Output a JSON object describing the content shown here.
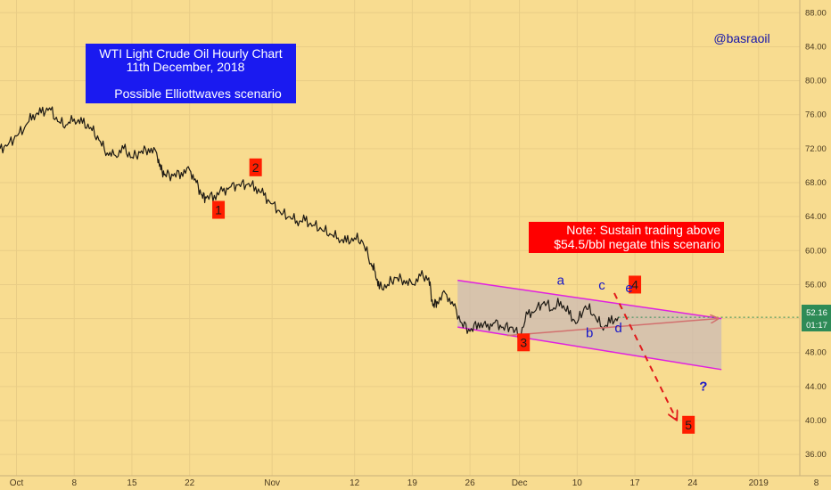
{
  "chart_data": {
    "type": "line",
    "title_lines": [
      "WTI Light Crude Oil Hourly Chart",
      "11th December, 2018",
      "Possible Elliottwaves scenario"
    ],
    "watermark": "@basraoil",
    "note_lines": [
      "Note: Sustain trading above",
      "$54.5/bbl negate this scenario"
    ],
    "ylim": [
      33.5,
      89.5
    ],
    "xlim": [
      0,
      97
    ],
    "y_ticks": [
      "88.00",
      "84.00",
      "80.00",
      "76.00",
      "72.00",
      "68.00",
      "64.00",
      "60.00",
      "56.00",
      "52.00",
      "48.00",
      "44.00",
      "40.00",
      "36.00"
    ],
    "x_ticks": [
      {
        "label": "Oct",
        "x": 2
      },
      {
        "label": "8",
        "x": 9
      },
      {
        "label": "15",
        "x": 16
      },
      {
        "label": "22",
        "x": 23
      },
      {
        "label": "Nov",
        "x": 33
      },
      {
        "label": "12",
        "x": 43
      },
      {
        "label": "19",
        "x": 50
      },
      {
        "label": "26",
        "x": 57
      },
      {
        "label": "Dec",
        "x": 63
      },
      {
        "label": "10",
        "x": 70
      },
      {
        "label": "17",
        "x": 77
      },
      {
        "label": "24",
        "x": 84
      },
      {
        "label": "2019",
        "x": 92
      },
      {
        "label": "8",
        "x": 99
      }
    ],
    "series": [
      {
        "points": [
          [
            0,
            72.0
          ],
          [
            1,
            72.5
          ],
          [
            2,
            73.5
          ],
          [
            3,
            74.5
          ],
          [
            4,
            76.0
          ],
          [
            5,
            76.2
          ],
          [
            6,
            76.8
          ],
          [
            7,
            75.2
          ],
          [
            8,
            74.8
          ],
          [
            9,
            75.5
          ],
          [
            10,
            75.0
          ],
          [
            11,
            74.5
          ],
          [
            12,
            73.0
          ],
          [
            13,
            71.5
          ],
          [
            14,
            71.2
          ],
          [
            15,
            72.0
          ],
          [
            16,
            71.0
          ],
          [
            17,
            71.5
          ],
          [
            18,
            72.0
          ],
          [
            19,
            71.5
          ],
          [
            19.5,
            69.5
          ],
          [
            20,
            69.0
          ],
          [
            21,
            68.8
          ],
          [
            22,
            69.2
          ],
          [
            23,
            69.5
          ],
          [
            23.8,
            68.0
          ],
          [
            24.5,
            66.5
          ],
          [
            25,
            66.2
          ],
          [
            26,
            66.5
          ],
          [
            27,
            67.0
          ],
          [
            28,
            67.5
          ],
          [
            29,
            67.8
          ],
          [
            30,
            67.8
          ],
          [
            31,
            67.5
          ],
          [
            32,
            66.5
          ],
          [
            33,
            65.5
          ],
          [
            34,
            64.5
          ],
          [
            35,
            64.0
          ],
          [
            36,
            63.5
          ],
          [
            37,
            63.5
          ],
          [
            38,
            63.0
          ],
          [
            39,
            62.5
          ],
          [
            40,
            62.0
          ],
          [
            41,
            61.5
          ],
          [
            42,
            61.0
          ],
          [
            43,
            61.5
          ],
          [
            44,
            61.0
          ],
          [
            45,
            58.5
          ],
          [
            45.5,
            57.5
          ],
          [
            46,
            55.5
          ],
          [
            47,
            56.0
          ],
          [
            48,
            56.8
          ],
          [
            49,
            56.5
          ],
          [
            50,
            56.0
          ],
          [
            51,
            57.0
          ],
          [
            52,
            56.8
          ],
          [
            52.5,
            53.5
          ],
          [
            53,
            54.0
          ],
          [
            54,
            55.0
          ],
          [
            55,
            53.5
          ],
          [
            56,
            51.5
          ],
          [
            57,
            50.5
          ],
          [
            58,
            51.5
          ],
          [
            59,
            51.0
          ],
          [
            60,
            51.5
          ],
          [
            61,
            51.0
          ],
          [
            62,
            51.0
          ],
          [
            63,
            50.0
          ],
          [
            64,
            52.5
          ],
          [
            65,
            53.0
          ],
          [
            66,
            54.0
          ],
          [
            67,
            53.0
          ],
          [
            68,
            54.0
          ],
          [
            69,
            52.5
          ],
          [
            70,
            51.5
          ],
          [
            71,
            53.5
          ],
          [
            72,
            52.5
          ],
          [
            73,
            51.0
          ],
          [
            74,
            51.5
          ],
          [
            75,
            52.2
          ]
        ]
      }
    ],
    "price_label": "52.16",
    "countdown_label": "01:17",
    "last_price": 52.16,
    "channel": {
      "upper": [
        [
          55.5,
          56.5
        ],
        [
          87.5,
          52.0
        ]
      ],
      "lower": [
        [
          55.5,
          51.0
        ],
        [
          87.5,
          46.0
        ]
      ]
    },
    "projection_up": [
      [
        61.5,
        50.0
      ],
      [
        87,
        52.0
      ]
    ],
    "projection_down": [
      [
        74.5,
        55.0
      ],
      [
        82,
        40.2
      ]
    ],
    "wave_labels": [
      {
        "text": "1",
        "x": 26.5,
        "y": 64.8
      },
      {
        "text": "2",
        "x": 31.0,
        "y": 69.8
      },
      {
        "text": "3",
        "x": 63.5,
        "y": 49.2
      },
      {
        "text": "4",
        "x": 77.0,
        "y": 56.0
      },
      {
        "text": "5",
        "x": 83.5,
        "y": 39.5
      }
    ],
    "sub_labels": [
      {
        "text": "a",
        "x": 68.0,
        "y": 56.0
      },
      {
        "text": "b",
        "x": 71.5,
        "y": 49.8
      },
      {
        "text": "c",
        "x": 73.0,
        "y": 55.4
      },
      {
        "text": "d",
        "x": 75.0,
        "y": 50.4
      },
      {
        "text": "e",
        "x": 76.3,
        "y": 55.1
      },
      {
        "text": "?",
        "x": 85.3,
        "y": 43.5
      }
    ],
    "colors": {
      "background": "#f8dc90",
      "price_line": "#1e1a14",
      "channel": "#e020e0",
      "projection_up": "#d2706e",
      "projection_down": "#e11b1b",
      "wave_label_bg": "#ff1e00",
      "sub_label": "#1616c8",
      "title_bg": "#1a1af0",
      "title_text": "#ffffff",
      "watermark": "#1414aa",
      "note_bg": "#ff0000",
      "price_tag": "#2e8b57"
    }
  }
}
